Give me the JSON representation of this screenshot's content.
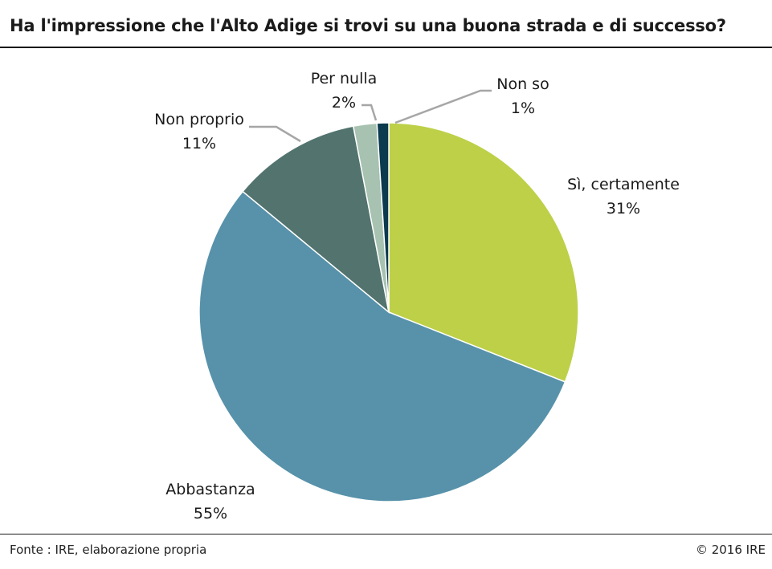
{
  "title": "Ha l'impressione che l'Alto Adige si trovi su una buona strada e di successo?",
  "footer": {
    "source": "Fonte : IRE, elaborazione propria",
    "copyright": "© 2016 IRE"
  },
  "chart_data": {
    "type": "pie",
    "slices": [
      {
        "label": "Sì, certamente",
        "value": 31,
        "value_text": "31%",
        "color": "#bdd048"
      },
      {
        "label": "Abbastanza",
        "value": 55,
        "value_text": "55%",
        "color": "#5792aa"
      },
      {
        "label": "Non proprio",
        "value": 11,
        "value_text": "11%",
        "color": "#52736e"
      },
      {
        "label": "Per nulla",
        "value": 2,
        "value_text": "2%",
        "color": "#a7c2b0"
      },
      {
        "label": "Non so",
        "value": 1,
        "value_text": "1%",
        "color": "#0c3a4f"
      }
    ],
    "start": "12 o'clock",
    "direction": "clockwise",
    "leader_line_color": "#a6a6a6"
  }
}
